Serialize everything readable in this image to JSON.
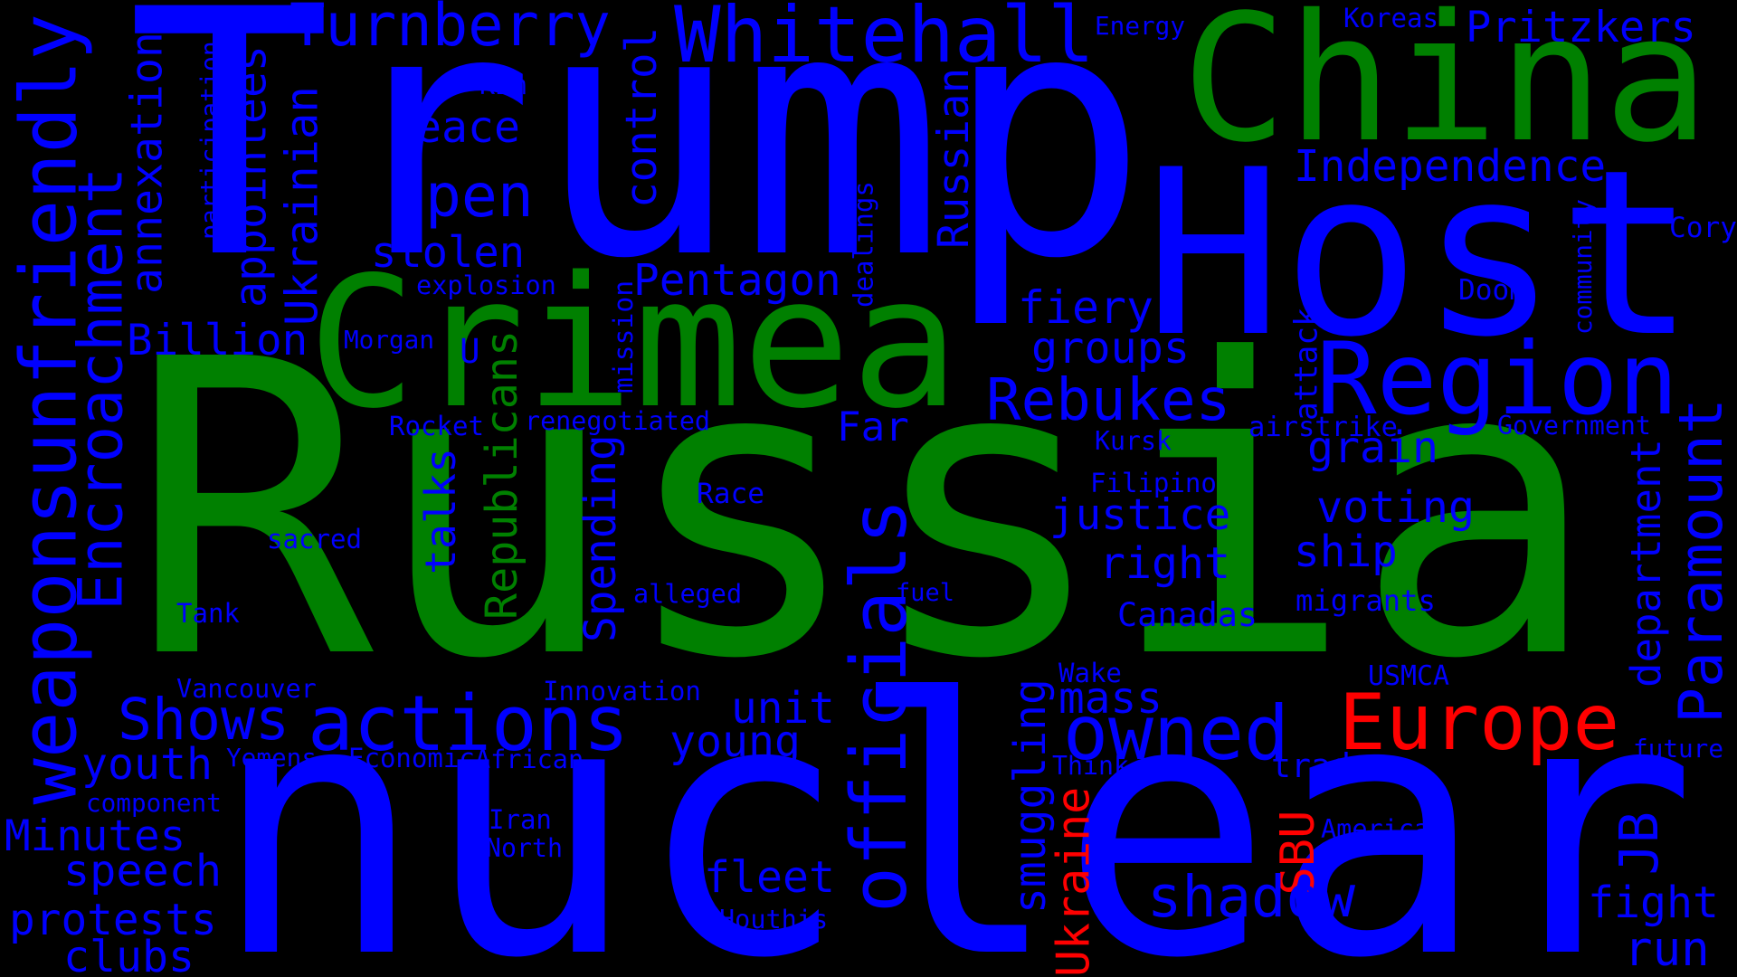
{
  "colors": {
    "background": "#000000",
    "blue": "#0000ff",
    "green": "#008000",
    "red": "#ff0000"
  },
  "words": [
    {
      "text": "Russia",
      "color": "green"
    },
    {
      "text": "nuclear",
      "color": "blue"
    },
    {
      "text": "Trump",
      "color": "blue"
    },
    {
      "text": "Host",
      "color": "blue"
    },
    {
      "text": "China",
      "color": "green"
    },
    {
      "text": "Crimea",
      "color": "green"
    },
    {
      "text": "Region",
      "color": "blue"
    },
    {
      "text": "Whitehall",
      "color": "blue"
    },
    {
      "text": "Turnberry",
      "color": "blue"
    },
    {
      "text": "Pritzkers",
      "color": "blue"
    },
    {
      "text": "Koreas",
      "color": "blue"
    },
    {
      "text": "Energy",
      "color": "blue"
    },
    {
      "text": "weaponsunfriendly",
      "color": "blue"
    },
    {
      "text": "Encroachment",
      "color": "blue"
    },
    {
      "text": "annexation",
      "color": "blue"
    },
    {
      "text": "participation",
      "color": "blue"
    },
    {
      "text": "appointees",
      "color": "blue"
    },
    {
      "text": "Ukrainian",
      "color": "blue"
    },
    {
      "text": "Kim",
      "color": "blue"
    },
    {
      "text": "peace",
      "color": "blue"
    },
    {
      "text": "control",
      "color": "blue"
    },
    {
      "text": "Open",
      "color": "blue"
    },
    {
      "text": "Russian",
      "color": "blue"
    },
    {
      "text": "Independence",
      "color": "blue"
    },
    {
      "text": "Cory",
      "color": "blue"
    },
    {
      "text": "community",
      "color": "blue"
    },
    {
      "text": "stolen",
      "color": "blue"
    },
    {
      "text": "explosion",
      "color": "blue"
    },
    {
      "text": "dealings",
      "color": "blue"
    },
    {
      "text": "Pentagon",
      "color": "blue"
    },
    {
      "text": "Billion",
      "color": "blue"
    },
    {
      "text": "Morgan",
      "color": "blue"
    },
    {
      "text": "U",
      "color": "blue"
    },
    {
      "text": "Republicans",
      "color": "green"
    },
    {
      "text": "mission",
      "color": "blue"
    },
    {
      "text": "fiery",
      "color": "blue"
    },
    {
      "text": "groups",
      "color": "blue"
    },
    {
      "text": "Doom",
      "color": "blue"
    },
    {
      "text": "attack",
      "color": "blue"
    },
    {
      "text": "Rebukes",
      "color": "blue"
    },
    {
      "text": "Far",
      "color": "blue"
    },
    {
      "text": "Rocket",
      "color": "blue"
    },
    {
      "text": "renegotiated",
      "color": "blue"
    },
    {
      "text": "airstrike",
      "color": "blue"
    },
    {
      "text": "Government",
      "color": "blue"
    },
    {
      "text": "Kursk",
      "color": "blue"
    },
    {
      "text": "grain",
      "color": "blue"
    },
    {
      "text": "talks",
      "color": "blue"
    },
    {
      "text": "Spending",
      "color": "blue"
    },
    {
      "text": "Race",
      "color": "blue"
    },
    {
      "text": "Filipino",
      "color": "blue"
    },
    {
      "text": "justice",
      "color": "blue"
    },
    {
      "text": "voting",
      "color": "blue"
    },
    {
      "text": "officials",
      "color": "blue"
    },
    {
      "text": "department",
      "color": "blue"
    },
    {
      "text": "Paramount",
      "color": "blue"
    },
    {
      "text": "sacred",
      "color": "blue"
    },
    {
      "text": "ship",
      "color": "blue"
    },
    {
      "text": "right",
      "color": "blue"
    },
    {
      "text": "alleged",
      "color": "blue"
    },
    {
      "text": "fuel",
      "color": "blue"
    },
    {
      "text": "migrants",
      "color": "blue"
    },
    {
      "text": "Tank",
      "color": "blue"
    },
    {
      "text": "Canadas",
      "color": "blue"
    },
    {
      "text": "Vancouver",
      "color": "blue"
    },
    {
      "text": "Innovation",
      "color": "blue"
    },
    {
      "text": "Wake",
      "color": "blue"
    },
    {
      "text": "USMCA",
      "color": "blue"
    },
    {
      "text": "Shows",
      "color": "blue"
    },
    {
      "text": "actions",
      "color": "blue"
    },
    {
      "text": "unit",
      "color": "blue"
    },
    {
      "text": "smuggling",
      "color": "blue"
    },
    {
      "text": "mass",
      "color": "blue"
    },
    {
      "text": "owned",
      "color": "blue"
    },
    {
      "text": "Europe",
      "color": "red"
    },
    {
      "text": "young",
      "color": "blue"
    },
    {
      "text": "youth",
      "color": "blue"
    },
    {
      "text": "Yemens",
      "color": "blue"
    },
    {
      "text": "Economic",
      "color": "blue"
    },
    {
      "text": "African",
      "color": "blue"
    },
    {
      "text": "Think",
      "color": "blue"
    },
    {
      "text": "trade",
      "color": "blue"
    },
    {
      "text": "future",
      "color": "blue"
    },
    {
      "text": "component",
      "color": "blue"
    },
    {
      "text": "Ukraine",
      "color": "red"
    },
    {
      "text": "SBU",
      "color": "red"
    },
    {
      "text": "Minutes",
      "color": "blue"
    },
    {
      "text": "Iran",
      "color": "blue"
    },
    {
      "text": "North",
      "color": "blue"
    },
    {
      "text": "America",
      "color": "blue"
    },
    {
      "text": "JB",
      "color": "blue"
    },
    {
      "text": "speech",
      "color": "blue"
    },
    {
      "text": "fleet",
      "color": "blue"
    },
    {
      "text": "shadow",
      "color": "blue"
    },
    {
      "text": "fight",
      "color": "blue"
    },
    {
      "text": "protests",
      "color": "blue"
    },
    {
      "text": "Houthis",
      "color": "blue"
    },
    {
      "text": "s",
      "color": "blue"
    },
    {
      "text": "clubs",
      "color": "blue"
    },
    {
      "text": "run",
      "color": "blue"
    }
  ]
}
